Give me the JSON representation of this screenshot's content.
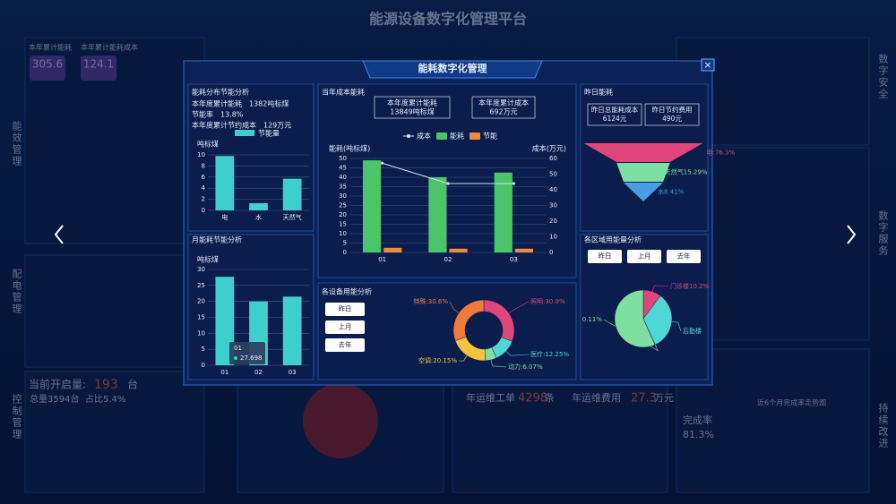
{
  "background": {
    "title": "能源设备数字化管理平台",
    "side_left": [
      "能效管理",
      "配电管理",
      "控制管理"
    ],
    "side_right": [
      "数字安全",
      "数字服务",
      "持续改进"
    ],
    "kpis": [
      {
        "label": "本年累计能耗",
        "value": "305.6"
      },
      {
        "label": "本年累计能耗成本",
        "value": "124.1"
      }
    ],
    "open_count": {
      "label": "当前开启量:",
      "value": "193",
      "unit": "台",
      "total": "总量3594台",
      "ratio": "占比5.4%"
    },
    "workorder": {
      "label1": "年运维工单",
      "value1": "4298",
      "unit1": "条",
      "label2": "年运维费用",
      "value2": "27.3",
      "unit2": "万元"
    },
    "completion": {
      "label": "完成率",
      "value": "81.3%",
      "trend_title": "近6个月完成率走势图"
    }
  },
  "modal": {
    "title": "能耗数字化管理",
    "close": "×",
    "distribution": {
      "title": "能耗分布节能分析",
      "stats": [
        "本年度累计能耗　1382吨标煤",
        "节能率　13.8%",
        "本年度累计节约成本　129万元"
      ],
      "chart": {
        "type": "bar",
        "y_label": "吨标煤",
        "categories": [
          "电",
          "水",
          "天然气"
        ],
        "series": [
          {
            "name": "节能量",
            "color": "#3ecfcf",
            "values": [
              9.8,
              1.3,
              5.7
            ]
          }
        ],
        "ylim": [
          0,
          10
        ],
        "yticks": [
          0,
          2,
          4,
          6,
          8,
          10
        ],
        "grid": true
      }
    },
    "monthly": {
      "title": "月能耗节能分析",
      "chart": {
        "type": "bar",
        "y_label": "吨标煤",
        "categories": [
          "01",
          "02",
          "03"
        ],
        "values": [
          27.698,
          20,
          21.5
        ],
        "color": "#3ecfcf",
        "ylim": [
          0,
          30
        ],
        "yticks": [
          0,
          5,
          10,
          15,
          20,
          25,
          30
        ],
        "grid": true
      }
    },
    "cost": {
      "title": "当年成本能耗",
      "boxes": [
        {
          "label": "本年度累计能耗",
          "value": "13849吨标煤"
        },
        {
          "label": "本年度累计成本",
          "value": "692万元"
        }
      ],
      "chart": {
        "type": "bar",
        "y_label": "能耗(吨标煤)",
        "y2_label": "成本(万元)",
        "categories": [
          "01",
          "02",
          "03"
        ],
        "series": [
          {
            "name": "成本",
            "type": "line",
            "axis": "y2",
            "color": "#d6e2f5",
            "values": [
              57,
              44,
              44
            ]
          },
          {
            "name": "能耗",
            "color": "#4cc46a",
            "values": [
              49,
              40,
              42.5
            ]
          },
          {
            "name": "节能",
            "color": "#f08a3c",
            "values": [
              2.5,
              2,
              2
            ]
          }
        ],
        "ylim": [
          0,
          50
        ],
        "yticks": [
          0,
          5,
          10,
          15,
          20,
          25,
          30,
          35,
          40,
          45,
          50
        ],
        "y2lim": [
          0,
          60
        ],
        "y2ticks": [
          0,
          10,
          20,
          30,
          40,
          50,
          60
        ],
        "grid": true
      }
    },
    "devices": {
      "title": "各设备用能分析",
      "buttons": [
        "昨日",
        "上月",
        "去年"
      ],
      "chart": {
        "type": "donut",
        "categories": [
          "照明",
          "医疗",
          "动力",
          "空调",
          "特殊"
        ],
        "values": [
          30.9,
          12.25,
          6.07,
          20.15,
          30.6
        ],
        "value_labels": [
          "照明:30.9%",
          "医疗:12.25%",
          "动力:6.07%",
          "空调:20.15%",
          "特殊:30.6%"
        ],
        "colors": [
          "#e0457b",
          "#4fd6d6",
          "#7ee0a0",
          "#f5c242",
          "#f07a3c"
        ]
      }
    },
    "yesterday": {
      "title": "昨日能耗",
      "boxes": [
        {
          "label": "昨日总能耗成本",
          "value": "6124元"
        },
        {
          "label": "昨日节约费用",
          "value": "490元"
        }
      ],
      "chart": {
        "type": "funnel",
        "categories": [
          "电",
          "天然气",
          "水"
        ],
        "values": [
          76.3,
          15.29,
          8.41
        ],
        "value_labels": [
          "电:76.3%",
          "天然气15.29%",
          "水8.41%"
        ],
        "colors": [
          "#e0457b",
          "#7ee0a0",
          "#4a9de0"
        ]
      }
    },
    "regions": {
      "title": "各区域用能量分析",
      "buttons": [
        "昨日",
        "上月",
        "去年"
      ],
      "chart": {
        "type": "pie",
        "values": [
          10.2,
          33,
          0.11,
          56.69
        ],
        "value_labels": [
          "门诊楼10.2%",
          "后勤楼",
          "0.11%",
          null
        ],
        "colors": [
          "#e0457b",
          "#4fd6d6",
          "#7ee0a0",
          "#7ee0a0"
        ]
      }
    }
  }
}
